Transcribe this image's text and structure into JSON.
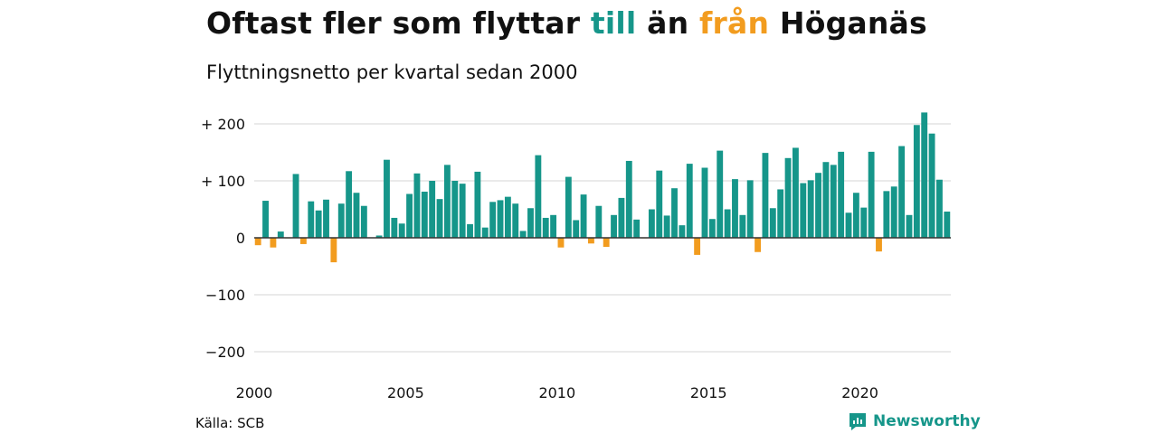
{
  "title": {
    "part1": "Oftast fler som flyttar ",
    "word_in": "till",
    "part2": " än ",
    "word_out": "från",
    "part3": " Höganäs"
  },
  "subtitle": "Flyttningsnetto per kvartal sedan 2000",
  "source": "Källa: SCB",
  "brand": "Newsworthy",
  "colors": {
    "positive": "#16968a",
    "negative": "#f29c1f",
    "grid": "#e3e3e3",
    "zero": "#333333",
    "text": "#111111"
  },
  "icons": {
    "brand": "newsworthy-logo-icon"
  },
  "chart_data": {
    "type": "bar",
    "title": "Oftast fler som flyttar till än från Höganäs",
    "subtitle": "Flyttningsnetto per kvartal sedan 2000",
    "ylim": [
      -200,
      220
    ],
    "yticks": [
      200,
      100,
      0,
      -100,
      -200
    ],
    "ytick_labels": [
      "+ 200",
      "+ 100",
      "0",
      "−100",
      "−200"
    ],
    "xticks": [
      "2000",
      "2005",
      "2010",
      "2015",
      "2020"
    ],
    "start": "2000 Q1",
    "values": [
      -13,
      65,
      -17,
      11,
      -1,
      112,
      -11,
      64,
      48,
      67,
      -43,
      60,
      117,
      79,
      56,
      0,
      4,
      137,
      35,
      25,
      77,
      113,
      81,
      100,
      68,
      128,
      100,
      95,
      24,
      116,
      18,
      63,
      66,
      72,
      60,
      12,
      52,
      145,
      35,
      40,
      -17,
      107,
      31,
      76,
      -10,
      56,
      -16,
      40,
      70,
      135,
      32,
      -1,
      50,
      118,
      39,
      87,
      22,
      130,
      -30,
      123,
      33,
      153,
      50,
      103,
      40,
      101,
      -25,
      149,
      52,
      85,
      140,
      158,
      96,
      101,
      114,
      133,
      128,
      151,
      44,
      79,
      53,
      151,
      -24,
      82,
      90,
      161,
      40,
      198,
      220,
      183,
      102,
      46
    ]
  }
}
